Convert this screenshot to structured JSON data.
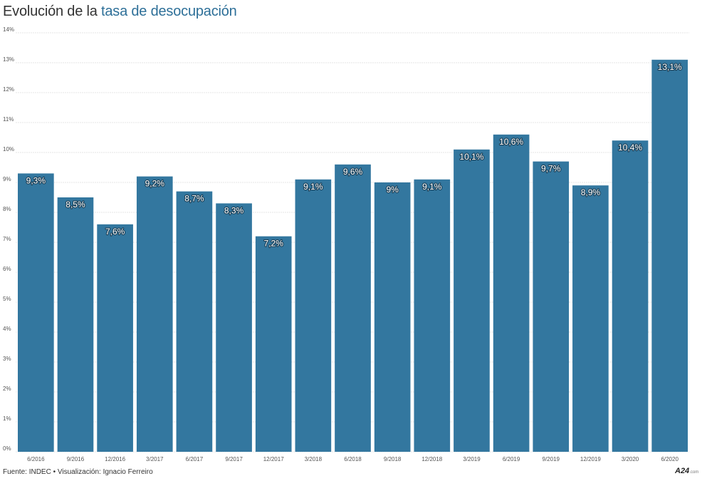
{
  "title": {
    "prefix": "Evolución de la",
    "highlight": "tasa de desocupación",
    "highlight_color": "#2d6f98"
  },
  "footer": {
    "source": "Fuente: INDEC • Visualización: Ignacio Ferreiro"
  },
  "logo": {
    "main": "A24",
    "suffix": ".com"
  },
  "colors": {
    "bar": "#33779f",
    "grid": "#e4e4e4",
    "axis_text": "#555555",
    "label_text": "#ffffff",
    "label_outline": "#1a3e55"
  },
  "chart_data": {
    "type": "bar",
    "title": "Evolución de la tasa de desocupación",
    "xlabel": "",
    "ylabel": "",
    "ylim": [
      0,
      14
    ],
    "yticks": [
      0,
      1,
      2,
      3,
      4,
      5,
      6,
      7,
      8,
      9,
      10,
      11,
      12,
      13,
      14
    ],
    "ytick_labels": [
      "0%",
      "1%",
      "2%",
      "3%",
      "4%",
      "5%",
      "6%",
      "7%",
      "8%",
      "9%",
      "10%",
      "11%",
      "12%",
      "13%",
      "14%"
    ],
    "grid": true,
    "categories": [
      "6/2016",
      "9/2016",
      "12/2016",
      "3/2017",
      "6/2017",
      "9/2017",
      "12/2017",
      "3/2018",
      "6/2018",
      "9/2018",
      "12/2018",
      "3/2019",
      "6/2019",
      "9/2019",
      "12/2019",
      "3/2020",
      "6/2020"
    ],
    "values": [
      9.3,
      8.5,
      7.6,
      9.2,
      8.7,
      8.3,
      7.2,
      9.1,
      9.6,
      9.0,
      9.1,
      10.1,
      10.6,
      9.7,
      8.9,
      10.4,
      13.1
    ],
    "data_labels": [
      "9,3%",
      "8,5%",
      "7,6%",
      "9,2%",
      "8,7%",
      "8,3%",
      "7,2%",
      "9,1%",
      "9,6%",
      "9%",
      "9,1%",
      "10,1%",
      "10,6%",
      "9,7%",
      "8,9%",
      "10,4%",
      "13,1%"
    ]
  }
}
